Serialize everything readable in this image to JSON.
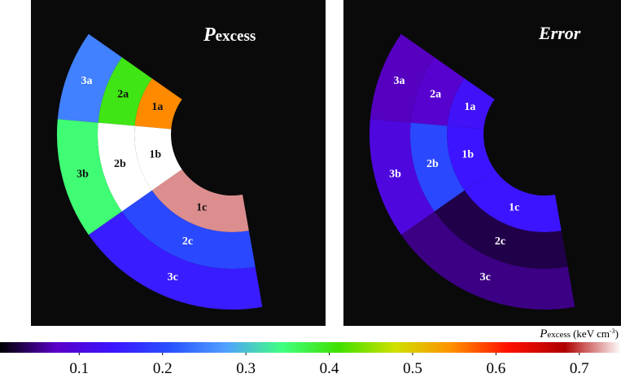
{
  "chart_data": [
    {
      "type": "sector-map",
      "title_symbol": "P",
      "title_subscript": "excess",
      "regions": [
        "1a",
        "1b",
        "1c",
        "2a",
        "2b",
        "2c",
        "3a",
        "3b",
        "3c"
      ],
      "values": [
        0.55,
        0.75,
        0.72,
        0.4,
        0.75,
        0.2,
        0.25,
        0.35,
        0.15
      ]
    },
    {
      "type": "sector-map",
      "title": "Error",
      "regions": [
        "1a",
        "1b",
        "1c",
        "2a",
        "2b",
        "2c",
        "3a",
        "3b",
        "3c"
      ],
      "values": [
        0.13,
        0.14,
        0.14,
        0.08,
        0.2,
        0.03,
        0.07,
        0.1,
        0.05
      ]
    },
    {
      "type": "colorbar",
      "label_symbol": "P",
      "label_subscript": "excess",
      "label_unit": "(keV cm",
      "label_unit_sup": "-3",
      "label_close": ")",
      "xlim": [
        0.005,
        0.75
      ],
      "xticks": [
        0.1,
        0.2,
        0.3,
        0.4,
        0.5,
        0.6,
        0.7
      ],
      "colormap": [
        "#000000",
        "#5a00c8",
        "#3c14ff",
        "#2850ff",
        "#50a0ff",
        "#40ff80",
        "#40e000",
        "#d0e000",
        "#ff9000",
        "#ff1000",
        "#b00000",
        "#ffffff"
      ]
    }
  ]
}
